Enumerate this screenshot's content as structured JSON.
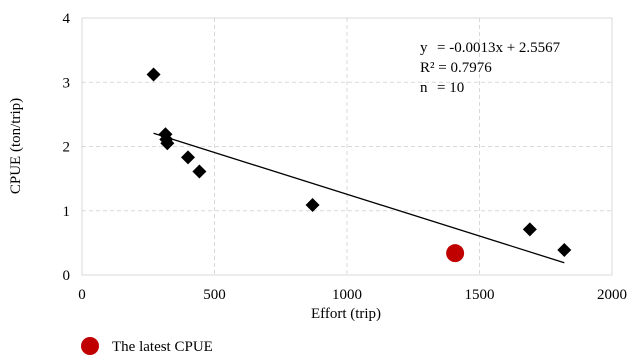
{
  "chart_data": {
    "type": "scatter",
    "xlabel": "Effort (trip)",
    "ylabel": "CPUE (ton/trip)",
    "xlim": [
      0,
      2000
    ],
    "ylim": [
      0,
      4
    ],
    "x_ticks": [
      0,
      500,
      1000,
      1500,
      2000
    ],
    "y_ticks": [
      0,
      1,
      2,
      3,
      4
    ],
    "grid": "dashed",
    "series": [
      {
        "marker": "diamond",
        "color": "#000000",
        "points": [
          {
            "x": 270,
            "y": 3.12
          },
          {
            "x": 315,
            "y": 2.19
          },
          {
            "x": 318,
            "y": 2.11
          },
          {
            "x": 322,
            "y": 2.05
          },
          {
            "x": 400,
            "y": 1.83
          },
          {
            "x": 443,
            "y": 1.61
          },
          {
            "x": 870,
            "y": 1.09
          },
          {
            "x": 1690,
            "y": 0.71
          },
          {
            "x": 1820,
            "y": 0.39
          }
        ]
      },
      {
        "name": "The latest CPUE",
        "marker": "circle",
        "color": "#c00000",
        "points": [
          {
            "x": 1408,
            "y": 0.34
          }
        ]
      }
    ],
    "trendline": {
      "slope": -0.0013,
      "intercept": 2.5567,
      "x_range": [
        270,
        1820
      ]
    },
    "annotations": {
      "line1_lhs": "y",
      "line1_rhs": "= -0.0013x + 2.5567",
      "line2": "R² = 0.7976",
      "line3_lhs": "n",
      "line3_rhs": "= 10"
    },
    "legend": {
      "label": "The latest CPUE",
      "placement": "bottom-left"
    }
  }
}
